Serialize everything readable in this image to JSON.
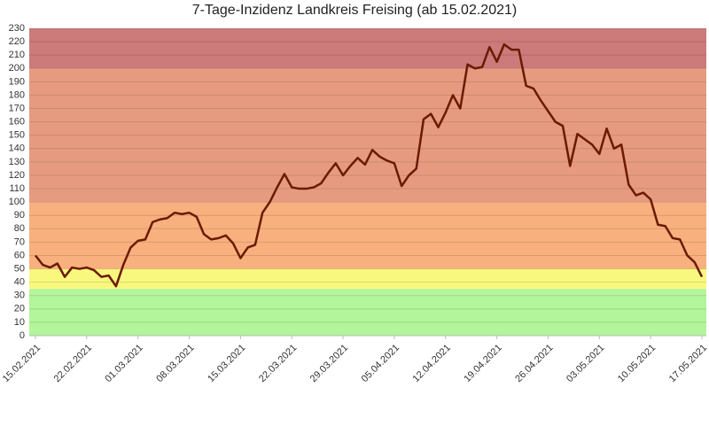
{
  "chart_data": {
    "type": "line",
    "title": "7-Tage-Inzidenz Landkreis Freising (ab 15.02.2021)",
    "categories": [
      "15.02.2021",
      null,
      null,
      null,
      null,
      null,
      null,
      "22.02.2021",
      null,
      null,
      null,
      null,
      null,
      null,
      "01.03.2021",
      null,
      null,
      null,
      null,
      null,
      null,
      "08.03.2021",
      null,
      null,
      null,
      null,
      null,
      null,
      "15.03.2021",
      null,
      null,
      null,
      null,
      null,
      null,
      "22.03.2021",
      null,
      null,
      null,
      null,
      null,
      null,
      "29.03.2021",
      null,
      null,
      null,
      null,
      null,
      null,
      "05.04.2021",
      null,
      null,
      null,
      null,
      null,
      null,
      "12.04.2021",
      null,
      null,
      null,
      null,
      null,
      null,
      "19.04.2021",
      null,
      null,
      null,
      null,
      null,
      null,
      "26.04.2021",
      null,
      null,
      null,
      null,
      null,
      null,
      "03.05.2021",
      null,
      null,
      null,
      null,
      null,
      null,
      "10.05.2021",
      null,
      null,
      null,
      null,
      null,
      null,
      "17.05.2021"
    ],
    "series": [
      {
        "color": "#6b1a00",
        "values": [
          60,
          53,
          51,
          54,
          44,
          51,
          50,
          51,
          49,
          44,
          45,
          37,
          53,
          66,
          71,
          72,
          85,
          87,
          88,
          92,
          91,
          92,
          89,
          76,
          72,
          73,
          75,
          69,
          58,
          66,
          68,
          92,
          100,
          111,
          121,
          111,
          110,
          110,
          111,
          114,
          122,
          129,
          120,
          127,
          133,
          128,
          139,
          134,
          131,
          129,
          112,
          120,
          125,
          162,
          166,
          156,
          167,
          180,
          170,
          203,
          200,
          201,
          216,
          205,
          218,
          214,
          214,
          187,
          185,
          176,
          168,
          160,
          157,
          127,
          151,
          147,
          143,
          136,
          155,
          140,
          143,
          113,
          105,
          107,
          102,
          83,
          82,
          73,
          72,
          60,
          55,
          44
        ]
      }
    ],
    "bands": [
      {
        "from": 0,
        "to": 35,
        "color": "#b3f59a"
      },
      {
        "from": 35,
        "to": 50,
        "color": "#f8f87e"
      },
      {
        "from": 50,
        "to": 100,
        "color": "#f8b07e"
      },
      {
        "from": 100,
        "to": 200,
        "color": "#e69b80"
      },
      {
        "from": 200,
        "to": 230,
        "color": "#cc7a7a"
      }
    ],
    "ylim": [
      0,
      230
    ],
    "yticks": [
      0,
      10,
      20,
      30,
      40,
      50,
      60,
      70,
      80,
      90,
      100,
      110,
      120,
      130,
      140,
      150,
      160,
      170,
      180,
      190,
      200,
      210,
      220,
      230
    ],
    "grid": true
  }
}
